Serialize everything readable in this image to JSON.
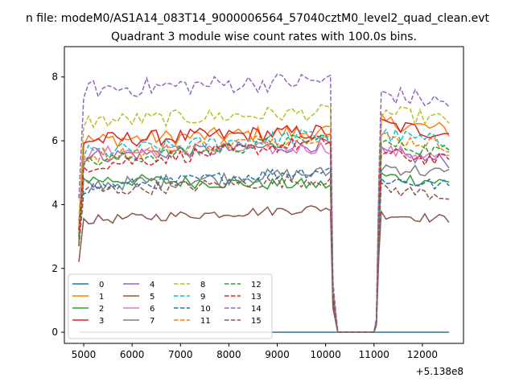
{
  "figure": {
    "suptitle": "n file: modeM0/AS1A14_083T14_9000006564_57040cztM0_level2_quad_clean.evt",
    "offset_label": "+5.138e8"
  },
  "chart_data": {
    "type": "line",
    "title": "Quadrant 3 module wise count rates with 100.0s bins.",
    "xlabel": "",
    "ylabel": "",
    "xlim": [
      4600,
      12850
    ],
    "ylim": [
      -0.35,
      8.95
    ],
    "x_offset": 513800000,
    "x_ticks": [
      5000,
      6000,
      7000,
      8000,
      9000,
      10000,
      11000,
      12000
    ],
    "x_tick_labels": [
      "5000",
      "6000",
      "7000",
      "8000",
      "9000",
      "10000",
      "11000",
      "12000"
    ],
    "y_ticks": [
      0,
      2,
      4,
      6,
      8
    ],
    "y_tick_labels": [
      "0",
      "2",
      "4",
      "6",
      "8"
    ],
    "grid": false,
    "legend": {
      "location": "lower-left",
      "ncol": 4
    },
    "gap": {
      "fall": [
        10150,
        10250,
        10300
      ],
      "rise": [
        11000,
        11050,
        11100,
        11150
      ]
    },
    "segments": {
      "first": [
        4900,
        10150
      ],
      "second": [
        11150,
        12550
      ],
      "bin": 100
    },
    "series": [
      {
        "name": "0",
        "style": "solid",
        "color": "#1f77b4",
        "start": 0.0,
        "end": 0.0,
        "base": [
          0.0,
          0.0
        ],
        "level2": 0.0,
        "jitter": 0.0
      },
      {
        "name": "1",
        "style": "solid",
        "color": "#ff7f0e",
        "start": 3.0,
        "end": 5.9,
        "base": [
          6.0,
          6.3
        ],
        "level2": 6.6,
        "jitter": 0.25
      },
      {
        "name": "2",
        "style": "solid",
        "color": "#2ca02c",
        "start": 2.8,
        "end": 5.2,
        "base": [
          4.8,
          4.6
        ],
        "level2": 4.9,
        "jitter": 0.2
      },
      {
        "name": "3",
        "style": "solid",
        "color": "#d62728",
        "start": 3.2,
        "end": 5.8,
        "base": [
          6.0,
          6.3
        ],
        "level2": 6.5,
        "jitter": 0.25
      },
      {
        "name": "4",
        "style": "solid",
        "color": "#9467bd",
        "start": 3.0,
        "end": 5.7,
        "base": [
          5.5,
          5.9
        ],
        "level2": 5.6,
        "jitter": 0.22
      },
      {
        "name": "5",
        "style": "solid",
        "color": "#8c564b",
        "start": 2.2,
        "end": 3.9,
        "base": [
          3.5,
          3.9
        ],
        "level2": 3.7,
        "jitter": 0.15
      },
      {
        "name": "6",
        "style": "solid",
        "color": "#e377c2",
        "start": 3.1,
        "end": 5.6,
        "base": [
          5.6,
          5.8
        ],
        "level2": 5.7,
        "jitter": 0.22
      },
      {
        "name": "7",
        "style": "solid",
        "color": "#7f7f7f",
        "start": 2.9,
        "end": 5.1,
        "base": [
          4.6,
          5.0
        ],
        "level2": 5.2,
        "jitter": 0.22
      },
      {
        "name": "8",
        "style": "dashed",
        "color": "#bcbd22",
        "start": 3.5,
        "end": 6.8,
        "base": [
          6.6,
          6.9
        ],
        "level2": 6.9,
        "jitter": 0.25
      },
      {
        "name": "9",
        "style": "dashed",
        "color": "#17becf",
        "start": 3.2,
        "end": 5.9,
        "base": [
          5.6,
          6.2
        ],
        "level2": 6.2,
        "jitter": 0.25
      },
      {
        "name": "10",
        "style": "dashed",
        "color": "#1f77b4",
        "start": 2.7,
        "end": 5.0,
        "base": [
          4.5,
          5.1
        ],
        "level2": 4.8,
        "jitter": 0.2
      },
      {
        "name": "11",
        "style": "dashed",
        "color": "#ff7f0e",
        "start": 3.1,
        "end": 5.7,
        "base": [
          5.5,
          6.2
        ],
        "level2": 6.1,
        "jitter": 0.22
      },
      {
        "name": "12",
        "style": "dashed",
        "color": "#2ca02c",
        "start": 3.0,
        "end": 5.5,
        "base": [
          5.3,
          6.1
        ],
        "level2": 5.9,
        "jitter": 0.22
      },
      {
        "name": "13",
        "style": "dashed",
        "color": "#d62728",
        "start": 3.2,
        "end": 5.6,
        "base": [
          5.2,
          6.0
        ],
        "level2": 5.6,
        "jitter": 0.22
      },
      {
        "name": "14",
        "style": "dashed",
        "color": "#9467bd",
        "start": 4.2,
        "end": 8.0,
        "base": [
          7.6,
          7.9
        ],
        "level2": 7.5,
        "jitter": 0.3
      },
      {
        "name": "15",
        "style": "dashed",
        "color": "#8c564b",
        "start": 2.7,
        "end": 5.0,
        "base": [
          4.4,
          4.8
        ],
        "level2": 4.5,
        "jitter": 0.2
      }
    ]
  }
}
